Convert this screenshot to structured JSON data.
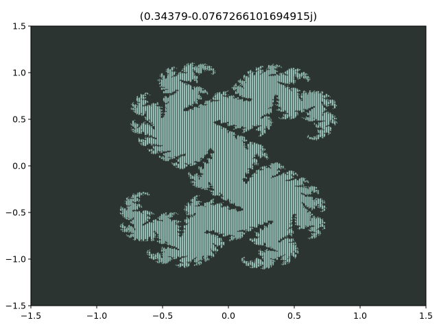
{
  "chart_data": {
    "type": "heatmap",
    "title": "(0.34379-0.0767266101694915j)",
    "c_real": 0.34379,
    "c_imag": -0.0767266101694915,
    "xlim": [
      -1.5,
      1.5
    ],
    "ylim": [
      -1.5,
      1.5
    ],
    "x_ticks": [
      -1.5,
      -1.0,
      -0.5,
      0.0,
      0.5,
      1.0,
      1.5
    ],
    "x_tick_labels": [
      "−1.5",
      "−1.0",
      "−0.5",
      "0.0",
      "0.5",
      "1.0",
      "1.5"
    ],
    "y_ticks": [
      -1.5,
      -1.0,
      -0.5,
      0.0,
      0.5,
      1.0,
      1.5
    ],
    "y_tick_labels": [
      "−1.5",
      "−1.0",
      "−0.5",
      "0.0",
      "0.5",
      "1.0",
      "1.5"
    ],
    "xlabel": "",
    "ylabel": "",
    "grid": false,
    "colors": {
      "background": "#2b3431",
      "set_fill": "#a4d2c6",
      "hatch_line": "#2b3431"
    }
  }
}
